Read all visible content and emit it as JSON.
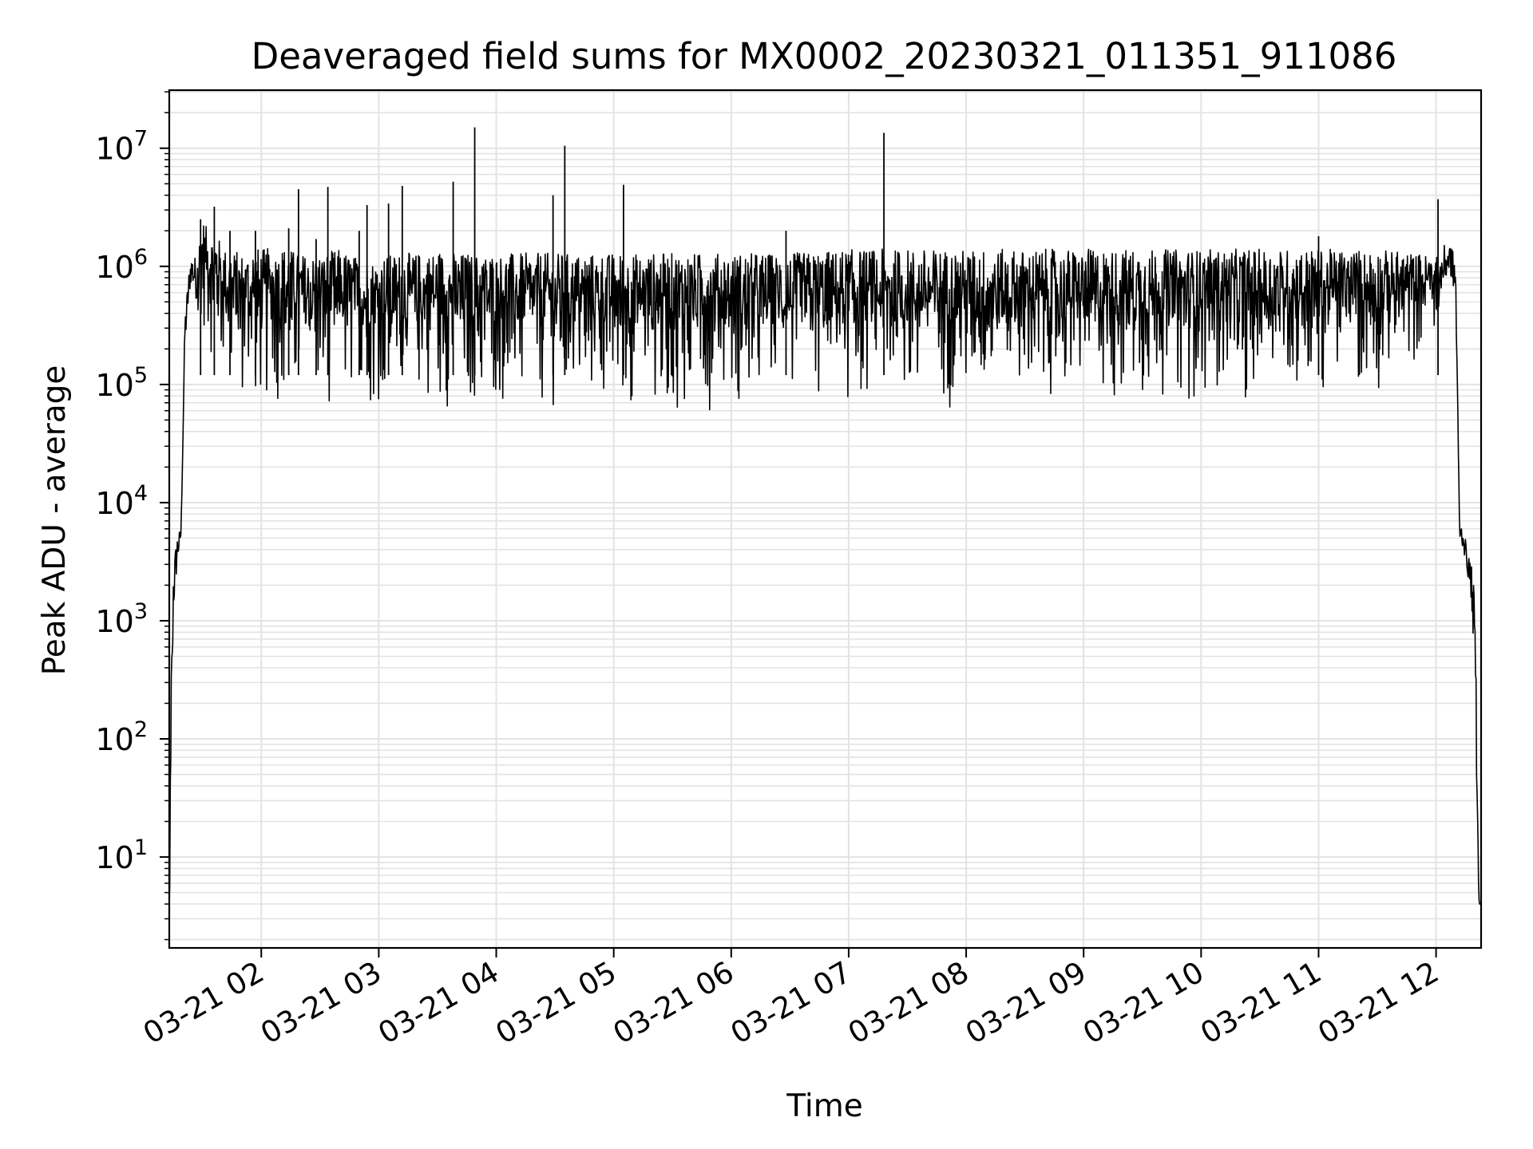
{
  "chart_data": {
    "type": "line",
    "title": "Deaveraged field sums for MX0002_20230321_011351_911086",
    "xlabel": "Time",
    "ylabel": "Peak ADU - average",
    "yscale": "log",
    "ylim": [
      1.7,
      31000000
    ],
    "xlim": [
      "2023-03-21 01:13",
      "2023-03-21 12:23"
    ],
    "grid": true,
    "line_color": "#000000",
    "grid_color": "#e3e3e3",
    "x_ticks": [
      {
        "value": "2023-03-21 02:00",
        "label": "03-21 02"
      },
      {
        "value": "2023-03-21 03:00",
        "label": "03-21 03"
      },
      {
        "value": "2023-03-21 04:00",
        "label": "03-21 04"
      },
      {
        "value": "2023-03-21 05:00",
        "label": "03-21 05"
      },
      {
        "value": "2023-03-21 06:00",
        "label": "03-21 06"
      },
      {
        "value": "2023-03-21 07:00",
        "label": "03-21 07"
      },
      {
        "value": "2023-03-21 08:00",
        "label": "03-21 08"
      },
      {
        "value": "2023-03-21 09:00",
        "label": "03-21 09"
      },
      {
        "value": "2023-03-21 10:00",
        "label": "03-21 10"
      },
      {
        "value": "2023-03-21 11:00",
        "label": "03-21 11"
      },
      {
        "value": "2023-03-21 12:00",
        "label": "03-21 12"
      }
    ],
    "y_ticks": [
      {
        "value": 10,
        "base": "10",
        "exp": "1"
      },
      {
        "value": 100,
        "base": "10",
        "exp": "2"
      },
      {
        "value": 1000,
        "base": "10",
        "exp": "3"
      },
      {
        "value": 10000,
        "base": "10",
        "exp": "4"
      },
      {
        "value": 100000,
        "base": "10",
        "exp": "5"
      },
      {
        "value": 1000000,
        "base": "10",
        "exp": "6"
      },
      {
        "value": 10000000,
        "base": "10",
        "exp": "7"
      }
    ],
    "series": [
      {
        "x": [
          "2023-03-21 01:13",
          "2023-03-21 01:14",
          "2023-03-21 01:15",
          "2023-03-21 01:17",
          "2023-03-21 01:19",
          "2023-03-21 01:21",
          "2023-03-21 01:23",
          "2023-03-21 01:24",
          "2023-03-21 01:26",
          "2023-03-21 01:28",
          "2023-03-21 01:30",
          "2023-03-21 01:33",
          "2023-03-21 01:35",
          "2023-03-21 01:38",
          "2023-03-21 01:40",
          "2023-03-21 01:45",
          "2023-03-21 01:50",
          "2023-03-21 01:55",
          "2023-03-21 02:00",
          "2023-03-21 02:10",
          "2023-03-21 02:20",
          "2023-03-21 02:30",
          "2023-03-21 02:40",
          "2023-03-21 02:50",
          "2023-03-21 03:00",
          "2023-03-21 03:10",
          "2023-03-21 03:20",
          "2023-03-21 03:30",
          "2023-03-21 03:40",
          "2023-03-21 03:50",
          "2023-03-21 04:00",
          "2023-03-21 04:10",
          "2023-03-21 04:20",
          "2023-03-21 04:30",
          "2023-03-21 04:40",
          "2023-03-21 04:50",
          "2023-03-21 05:00",
          "2023-03-21 05:30",
          "2023-03-21 06:00",
          "2023-03-21 06:30",
          "2023-03-21 07:00",
          "2023-03-21 07:30",
          "2023-03-21 08:00",
          "2023-03-21 08:30",
          "2023-03-21 09:00",
          "2023-03-21 09:30",
          "2023-03-21 10:00",
          "2023-03-21 10:30",
          "2023-03-21 11:00",
          "2023-03-21 11:30",
          "2023-03-21 11:50",
          "2023-03-21 12:00",
          "2023-03-21 12:04",
          "2023-03-21 12:07",
          "2023-03-21 12:10",
          "2023-03-21 12:12",
          "2023-03-21 12:14",
          "2023-03-21 12:16",
          "2023-03-21 12:18",
          "2023-03-21 12:20",
          "2023-03-21 12:21",
          "2023-03-21 12:22",
          "2023-03-21 12:23"
        ],
        "low": [
          4,
          4,
          1000,
          2800,
          5000,
          200000,
          500000,
          700000,
          600000,
          400000,
          300000,
          200000,
          150000,
          120000,
          100000,
          80000,
          70000,
          60000,
          60000,
          60000,
          60000,
          60000,
          60000,
          60000,
          60000,
          60000,
          60000,
          60000,
          60000,
          60000,
          60000,
          60000,
          60000,
          60000,
          60000,
          60000,
          60000,
          60000,
          60000,
          60000,
          60000,
          60000,
          60000,
          60000,
          60000,
          70000,
          70000,
          70000,
          80000,
          80000,
          150000,
          300000,
          700000,
          900000,
          500000,
          5000,
          4000,
          2500,
          1500,
          300,
          10,
          4,
          4
        ],
        "high": [
          4,
          400,
          3000,
          5500,
          6000,
          400000,
          900000,
          1300000,
          1200000,
          1500000,
          2500000,
          2000000,
          2000000,
          1800000,
          1500000,
          1400000,
          1300000,
          1500000,
          1400000,
          1500000,
          1300000,
          1300000,
          1400000,
          1200000,
          1200000,
          1300000,
          1300000,
          1400000,
          1300000,
          1300000,
          1300000,
          1300000,
          1300000,
          1300000,
          1300000,
          1300000,
          1300000,
          1300000,
          1300000,
          1300000,
          1400000,
          1400000,
          1400000,
          1400000,
          1400000,
          1400000,
          1400000,
          1400000,
          1400000,
          1400000,
          1300000,
          1200000,
          1500000,
          1600000,
          1200000,
          7000,
          6000,
          4000,
          3000,
          1500,
          50,
          4,
          4
        ]
      }
    ],
    "spikes": [
      {
        "x": "2023-03-21 01:29",
        "y": 2500000
      },
      {
        "x": "2023-03-21 01:36",
        "y": 3200000
      },
      {
        "x": "2023-03-21 01:44",
        "y": 2000000
      },
      {
        "x": "2023-03-21 01:57",
        "y": 2000000
      },
      {
        "x": "2023-03-21 02:14",
        "y": 2100000
      },
      {
        "x": "2023-03-21 02:19",
        "y": 4500000
      },
      {
        "x": "2023-03-21 02:28",
        "y": 1700000
      },
      {
        "x": "2023-03-21 02:34",
        "y": 4700000
      },
      {
        "x": "2023-03-21 02:50",
        "y": 2000000
      },
      {
        "x": "2023-03-21 02:54",
        "y": 3300000
      },
      {
        "x": "2023-03-21 03:05",
        "y": 3400000
      },
      {
        "x": "2023-03-21 03:12",
        "y": 4800000
      },
      {
        "x": "2023-03-21 03:38",
        "y": 5200000
      },
      {
        "x": "2023-03-21 03:49",
        "y": 15000000
      },
      {
        "x": "2023-03-21 04:29",
        "y": 4000000
      },
      {
        "x": "2023-03-21 04:35",
        "y": 10500000
      },
      {
        "x": "2023-03-21 05:05",
        "y": 4900000
      },
      {
        "x": "2023-03-21 06:28",
        "y": 2000000
      },
      {
        "x": "2023-03-21 07:18",
        "y": 13500000
      },
      {
        "x": "2023-03-21 11:00",
        "y": 1800000
      },
      {
        "x": "2023-03-21 12:01",
        "y": 3700000
      }
    ]
  }
}
